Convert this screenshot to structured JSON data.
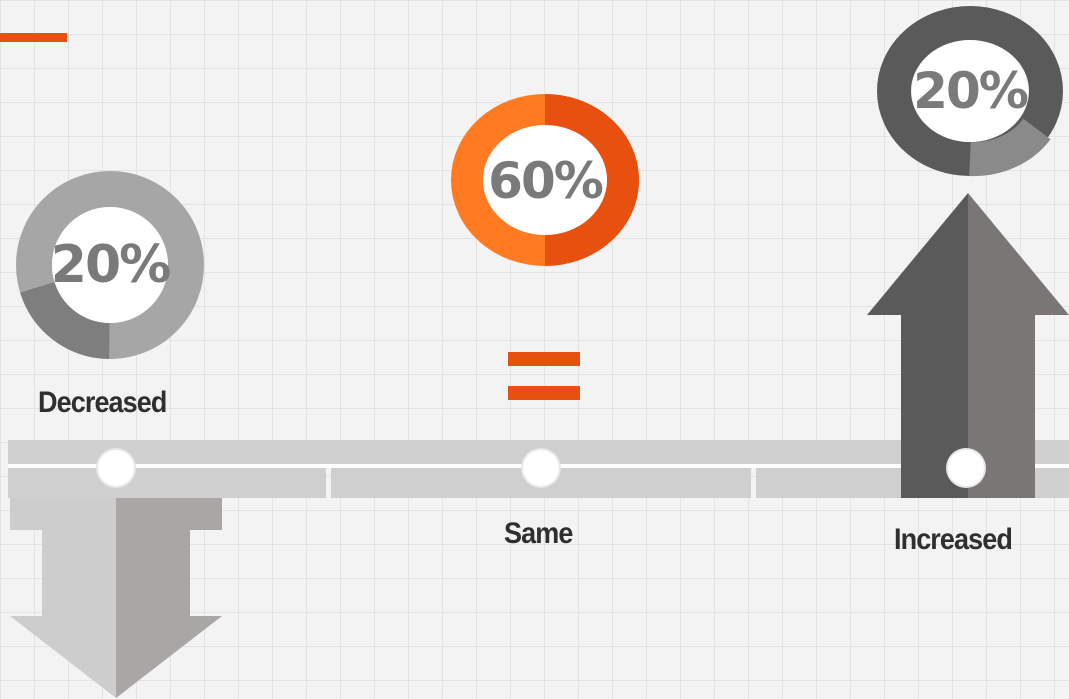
{
  "colors": {
    "accent": "#e8500f",
    "accent_light": "#ff7a20",
    "dark_gray": "#5a5a5a",
    "mid_gray": "#8a8a8a",
    "light_gray": "#a6a6a6",
    "lighter_gray": "#cfcfcf"
  },
  "items": [
    {
      "key": "decreased",
      "label": "Decreased",
      "percent_text": "20%",
      "share": 0.2
    },
    {
      "key": "same",
      "label": "Same",
      "percent_text": "60%",
      "share": 0.6
    },
    {
      "key": "increased",
      "label": "Increased",
      "percent_text": "20%",
      "share": 0.2
    }
  ]
}
